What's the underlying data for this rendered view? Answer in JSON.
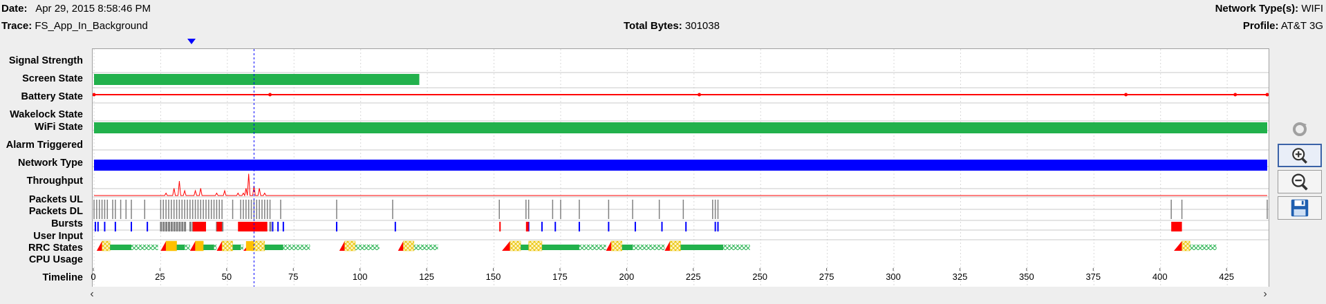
{
  "header": {
    "date_label": "Date:",
    "date_value": "Apr 29, 2015 8:58:46 PM",
    "trace_label": "Trace:",
    "trace_value": "FS_App_In_Background",
    "total_bytes_label": "Total Bytes:",
    "total_bytes_value": "301038",
    "network_types_label": "Network Type(s):",
    "network_types_value": "WIFI",
    "profile_label": "Profile:",
    "profile_value": "AT&T 3G"
  },
  "rows": {
    "signal_strength": "Signal Strength",
    "screen_state": "Screen State",
    "battery_state": "Battery State",
    "wakelock_state": "Wakelock State",
    "wifi_state": "WiFi State",
    "alarm_triggered": "Alarm Triggered",
    "network_type": "Network Type",
    "throughput": "Throughput",
    "packets_ul": "Packets UL",
    "packets_dl": "Packets DL",
    "bursts": "Bursts",
    "user_input": "User Input",
    "rrc_states": "RRC States",
    "cpu_usage": "CPU Usage",
    "timeline": "Timeline"
  },
  "timeline": {
    "min": 0,
    "max": 440,
    "ticks": [
      "0",
      "25",
      "50",
      "75",
      "100",
      "125",
      "150",
      "175",
      "200",
      "225",
      "250",
      "275",
      "300",
      "325",
      "350",
      "375",
      "400",
      "425"
    ],
    "cursor_time": 60
  },
  "colors": {
    "green": "#22b14c",
    "blue": "#0000ff",
    "red": "#ff0000",
    "gray": "#808080",
    "yellow": "#ffc000",
    "grid": "#d8d8d8"
  },
  "tracks": {
    "screen_on": [
      [
        0,
        122
      ]
    ],
    "battery_points": [
      0,
      66,
      227,
      387,
      428,
      440
    ],
    "wifi_on": [
      [
        0,
        440
      ]
    ],
    "network_wifi": [
      [
        0,
        440
      ]
    ],
    "throughput_spikes": [
      [
        27,
        1
      ],
      [
        30,
        3
      ],
      [
        32,
        6
      ],
      [
        34,
        2
      ],
      [
        38,
        2
      ],
      [
        40,
        3
      ],
      [
        46,
        1
      ],
      [
        49,
        2
      ],
      [
        54,
        1
      ],
      [
        56,
        1
      ],
      [
        57,
        3
      ],
      [
        58,
        9
      ],
      [
        60,
        4
      ],
      [
        62,
        3
      ],
      [
        64,
        1
      ]
    ],
    "packets": [
      0,
      1,
      2,
      3,
      4,
      5,
      7,
      8,
      10,
      12,
      14,
      19,
      25,
      26,
      27,
      28,
      29,
      30,
      31,
      32,
      33,
      34,
      35,
      36,
      37,
      38,
      39,
      40,
      41,
      42,
      43,
      44,
      45,
      46,
      47,
      48,
      52,
      55,
      56,
      57,
      58,
      59,
      60,
      61,
      62,
      63,
      64,
      65,
      66,
      70,
      91,
      112,
      152,
      162,
      163,
      172,
      175,
      182,
      193,
      202,
      212,
      221,
      232,
      233,
      234,
      404,
      408,
      440
    ],
    "bursts_blue": [
      0.5,
      1.5,
      4,
      8,
      14,
      20,
      67,
      69,
      71,
      91,
      113,
      163,
      168,
      173,
      182,
      193,
      203,
      213,
      222,
      233,
      234
    ],
    "bursts_gray": [
      25,
      26,
      27,
      28,
      29,
      30,
      31,
      32,
      33,
      34,
      36,
      37,
      38,
      39,
      40,
      46,
      47,
      48,
      66
    ],
    "bursts_red": [
      [
        37,
        42
      ],
      [
        46,
        48
      ],
      [
        54,
        65
      ],
      [
        152,
        152.5
      ],
      [
        162,
        163
      ],
      [
        404,
        408
      ]
    ],
    "rrc": [
      {
        "promo": [
          1,
          3
        ],
        "tail1": [
          3,
          6
        ],
        "idle": [
          6,
          14
        ],
        "tail2": [
          14,
          24
        ]
      },
      {
        "promo": [
          25,
          27
        ],
        "tail1": [
          27,
          31
        ],
        "idle": [
          31,
          34
        ],
        "tail2": [
          34,
          36
        ]
      },
      {
        "promo": [
          36,
          38
        ],
        "tail1": [
          38,
          41
        ],
        "idle": [
          41,
          45
        ],
        "tail2": [
          45,
          46
        ]
      },
      {
        "promo": [
          46,
          48
        ],
        "tail1": [
          48,
          52
        ],
        "idle": [
          52,
          55
        ],
        "tail2": [
          55,
          56
        ]
      },
      {
        "promo": [
          56,
          59
        ],
        "tail1": [
          59,
          64
        ],
        "idle": [
          64,
          71
        ],
        "tail2": [
          71,
          81
        ]
      },
      {
        "promo": [
          92,
          94
        ],
        "tail1": [
          94,
          98
        ],
        "idle": [
          98,
          98
        ],
        "tail2": [
          98,
          107
        ]
      },
      {
        "promo": [
          114,
          116
        ],
        "tail1": [
          116,
          120
        ],
        "idle": [
          120,
          120
        ],
        "tail2": [
          120,
          129
        ]
      },
      {
        "promo": [
          153,
          156
        ],
        "tail1": [
          156,
          160
        ],
        "idle": [
          160,
          163
        ],
        "tail2": [
          163,
          163
        ]
      },
      {
        "promo": [
          163,
          163
        ],
        "tail1": [
          163,
          168
        ],
        "idle": [
          168,
          182
        ],
        "tail2": [
          182,
          192
        ]
      },
      {
        "promo": [
          192,
          194
        ],
        "tail1": [
          194,
          198
        ],
        "idle": [
          198,
          202
        ],
        "tail2": [
          202,
          214
        ]
      },
      {
        "promo": [
          214,
          216
        ],
        "tail1": [
          216,
          220
        ],
        "idle": [
          220,
          236
        ],
        "tail2": [
          236,
          246
        ]
      },
      {
        "promo": [
          405,
          408
        ],
        "tail1": [
          408,
          411
        ],
        "idle": [
          411,
          411
        ],
        "tail2": [
          411,
          421
        ]
      }
    ]
  },
  "toolbar": {
    "refresh": "refresh-icon",
    "zoom_in": "zoom-in-icon",
    "zoom_out": "zoom-out-icon",
    "save": "save-icon"
  }
}
